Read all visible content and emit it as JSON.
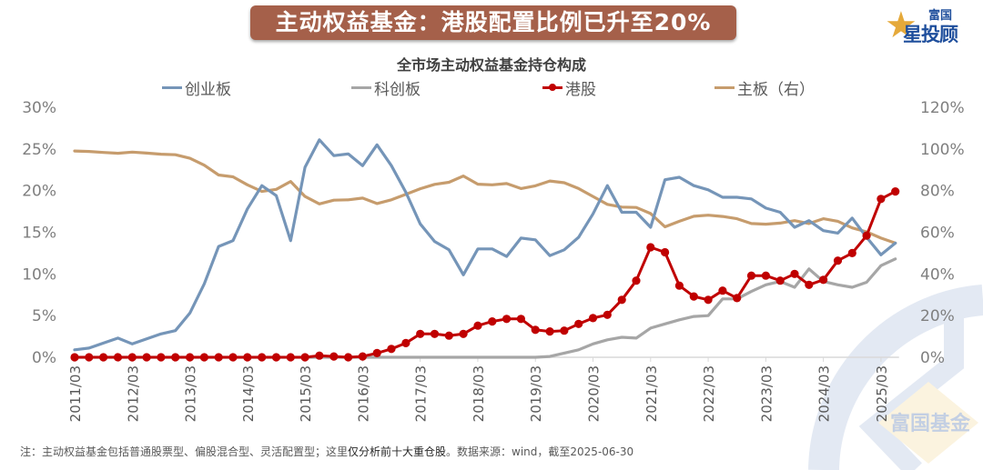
{
  "banner": {
    "title": "主动权益基金：港股配置比例已升至20%"
  },
  "logo": {
    "brand_top": "富国",
    "brand_bottom": "星投顾",
    "icon": "star-icon"
  },
  "watermark": {
    "text": "富国基金"
  },
  "footnote": {
    "prefix": "注：主动权益基金包括普通股票型、偏股混合型、灵活配置型；这里",
    "emphasis": "仅分析前十大重仓股",
    "suffix": "。数据来源：wind，截至2025-06-30"
  },
  "chart_data": {
    "type": "line",
    "title": "全市场主动权益基金持仓构成",
    "xlabel": "",
    "ylabel_left": "",
    "ylabel_right": "",
    "legend_position": "top",
    "grid": false,
    "x_tick_labels": [
      "2011/03",
      "2012/03",
      "2013/03",
      "2014/03",
      "2015/03",
      "2016/03",
      "2017/03",
      "2018/03",
      "2019/03",
      "2020/03",
      "2021/03",
      "2022/03",
      "2023/03",
      "2024/03",
      "2025/03"
    ],
    "y_left": {
      "ticks": [
        "0%",
        "5%",
        "10%",
        "15%",
        "20%",
        "25%",
        "30%"
      ],
      "range": [
        0,
        30
      ]
    },
    "y_right": {
      "ticks": [
        "0%",
        "20%",
        "40%",
        "60%",
        "80%",
        "100%",
        "120%"
      ],
      "range": [
        0,
        120
      ]
    },
    "x_start": "2011/03",
    "x_end": "2025/06",
    "frequency": "quarterly",
    "series": [
      {
        "name": "创业板",
        "axis": "left",
        "color": "#7595b8",
        "markers": false,
        "values": [
          0.9,
          1.1,
          1.7,
          2.3,
          1.6,
          2.2,
          2.8,
          3.2,
          5.3,
          8.8,
          13.3,
          14.0,
          17.8,
          20.6,
          19.4,
          14.0,
          22.8,
          26.1,
          24.2,
          24.4,
          23.0,
          25.5,
          23.0,
          19.8,
          16.0,
          13.9,
          12.9,
          9.9,
          13.0,
          13.0,
          12.1,
          14.3,
          14.1,
          12.2,
          12.9,
          14.4,
          17.2,
          20.6,
          17.4,
          17.4,
          15.6,
          21.3,
          21.6,
          20.6,
          20.1,
          19.2,
          19.2,
          19.0,
          17.9,
          17.4,
          15.6,
          16.4,
          15.2,
          14.9,
          16.7,
          14.4,
          12.3,
          13.7
        ]
      },
      {
        "name": "科创板",
        "axis": "left",
        "color": "#a6a6a6",
        "markers": false,
        "values": [
          0,
          0,
          0,
          0,
          0,
          0,
          0,
          0,
          0,
          0,
          0,
          0,
          0,
          0,
          0,
          0,
          0,
          0,
          0,
          0,
          0,
          0,
          0,
          0,
          0,
          0,
          0,
          0,
          0,
          0,
          0,
          0,
          0,
          0.1,
          0.5,
          0.9,
          1.6,
          2.1,
          2.4,
          2.3,
          3.5,
          4.0,
          4.5,
          4.9,
          5.0,
          7.0,
          7.0,
          7.9,
          8.7,
          9.1,
          8.4,
          10.6,
          9.1,
          8.7,
          8.4,
          9.0,
          11.0,
          11.8
        ]
      },
      {
        "name": "港股",
        "axis": "left",
        "color": "#c00000",
        "markers": true,
        "values": [
          0,
          0,
          0,
          0,
          0,
          0,
          0,
          0,
          0,
          0,
          0,
          0,
          0,
          0,
          0,
          0,
          0,
          0.2,
          0.1,
          0,
          0.1,
          0.5,
          1.0,
          1.7,
          2.8,
          2.8,
          2.6,
          2.8,
          3.8,
          4.3,
          4.6,
          4.6,
          3.3,
          3.1,
          3.2,
          4.0,
          4.7,
          5.1,
          6.9,
          9.2,
          13.2,
          12.6,
          8.6,
          7.3,
          6.9,
          8.0,
          7.1,
          9.8,
          9.8,
          9.2,
          10.0,
          8.7,
          9.3,
          11.6,
          12.5,
          14.6,
          19.0,
          19.9
        ]
      },
      {
        "name": "主板（右）",
        "axis": "right",
        "color": "#c69c6d",
        "markers": false,
        "values": [
          99.0,
          98.8,
          98.3,
          97.9,
          98.5,
          98.0,
          97.5,
          97.2,
          95.5,
          92.2,
          87.5,
          86.6,
          82.8,
          79.6,
          80.6,
          84.4,
          77.2,
          73.6,
          75.4,
          75.6,
          76.4,
          73.8,
          75.6,
          78.2,
          80.9,
          83.0,
          84.0,
          87.0,
          83.1,
          82.8,
          83.4,
          81.0,
          82.3,
          84.6,
          83.8,
          81.0,
          77.2,
          73.4,
          72.1,
          71.9,
          69.0,
          62.6,
          65.3,
          67.7,
          68.2,
          67.6,
          66.5,
          64.2,
          63.9,
          64.4,
          65.6,
          64.2,
          66.5,
          65.3,
          62.1,
          60.2,
          57.2,
          54.8
        ]
      }
    ]
  }
}
